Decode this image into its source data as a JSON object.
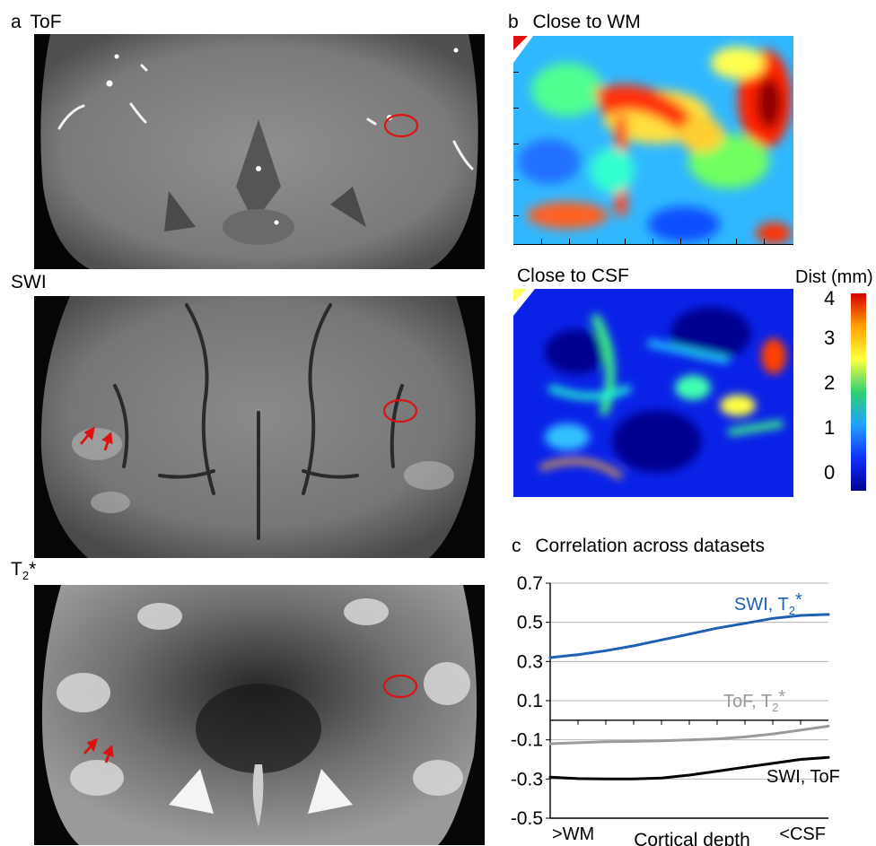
{
  "panel_a": {
    "letter": "a",
    "tof": {
      "title": "ToF"
    },
    "swi": {
      "title": "SWI"
    },
    "t2": {
      "title_main": "T",
      "title_sub": "2",
      "title_sup": "*"
    }
  },
  "panel_b": {
    "letter": "b",
    "wm": {
      "title": "Close to WM"
    },
    "csf": {
      "title": "Close to CSF"
    },
    "colorbar": {
      "title": "Dist (mm)",
      "ticks": [
        "4",
        "3",
        "2",
        "1",
        "0"
      ],
      "colors": [
        "#d40000",
        "#ffa000",
        "#ffff40",
        "#30d070",
        "#20a0ff",
        "#1030ff",
        "#00008f"
      ]
    }
  },
  "panel_c": {
    "letter": "c",
    "title": "Correlation across datasets"
  },
  "colors": {
    "swi_t2": "#1f5fb4",
    "tof_t2": "#9a9a9a",
    "swi_tof": "#000000",
    "marker": "#dd1111"
  },
  "chart_data": {
    "type": "line",
    "title": "Correlation across datasets",
    "xlabel": "Cortical depth",
    "x_tick_labels": [
      ">WM",
      "<CSF"
    ],
    "ylabel": "",
    "ylim": [
      -0.5,
      0.7
    ],
    "y_ticks": [
      "0.7",
      "0.5",
      "0.3",
      "0.1",
      "-0.1",
      "-0.3",
      "-0.5"
    ],
    "y_tick_values": [
      0.7,
      0.5,
      0.3,
      0.1,
      -0.1,
      -0.3,
      -0.5
    ],
    "x": [
      0,
      0.1,
      0.2,
      0.3,
      0.4,
      0.5,
      0.6,
      0.7,
      0.8,
      0.9,
      1.0
    ],
    "grid": true,
    "series": [
      {
        "name": "SWI, T",
        "name_sub": "2",
        "name_sup": "*",
        "color": "#1f5fb4",
        "values": [
          0.32,
          0.335,
          0.355,
          0.38,
          0.41,
          0.44,
          0.47,
          0.495,
          0.52,
          0.535,
          0.54
        ]
      },
      {
        "name": "ToF, T",
        "name_sub": "2",
        "name_sup": "*",
        "color": "#9a9a9a",
        "values": [
          -0.12,
          -0.115,
          -0.11,
          -0.108,
          -0.105,
          -0.1,
          -0.095,
          -0.085,
          -0.07,
          -0.05,
          -0.03
        ]
      },
      {
        "name": "SWI, ToF",
        "color": "#000000",
        "values": [
          -0.29,
          -0.298,
          -0.3,
          -0.3,
          -0.295,
          -0.28,
          -0.26,
          -0.24,
          -0.22,
          -0.2,
          -0.19
        ]
      }
    ]
  }
}
